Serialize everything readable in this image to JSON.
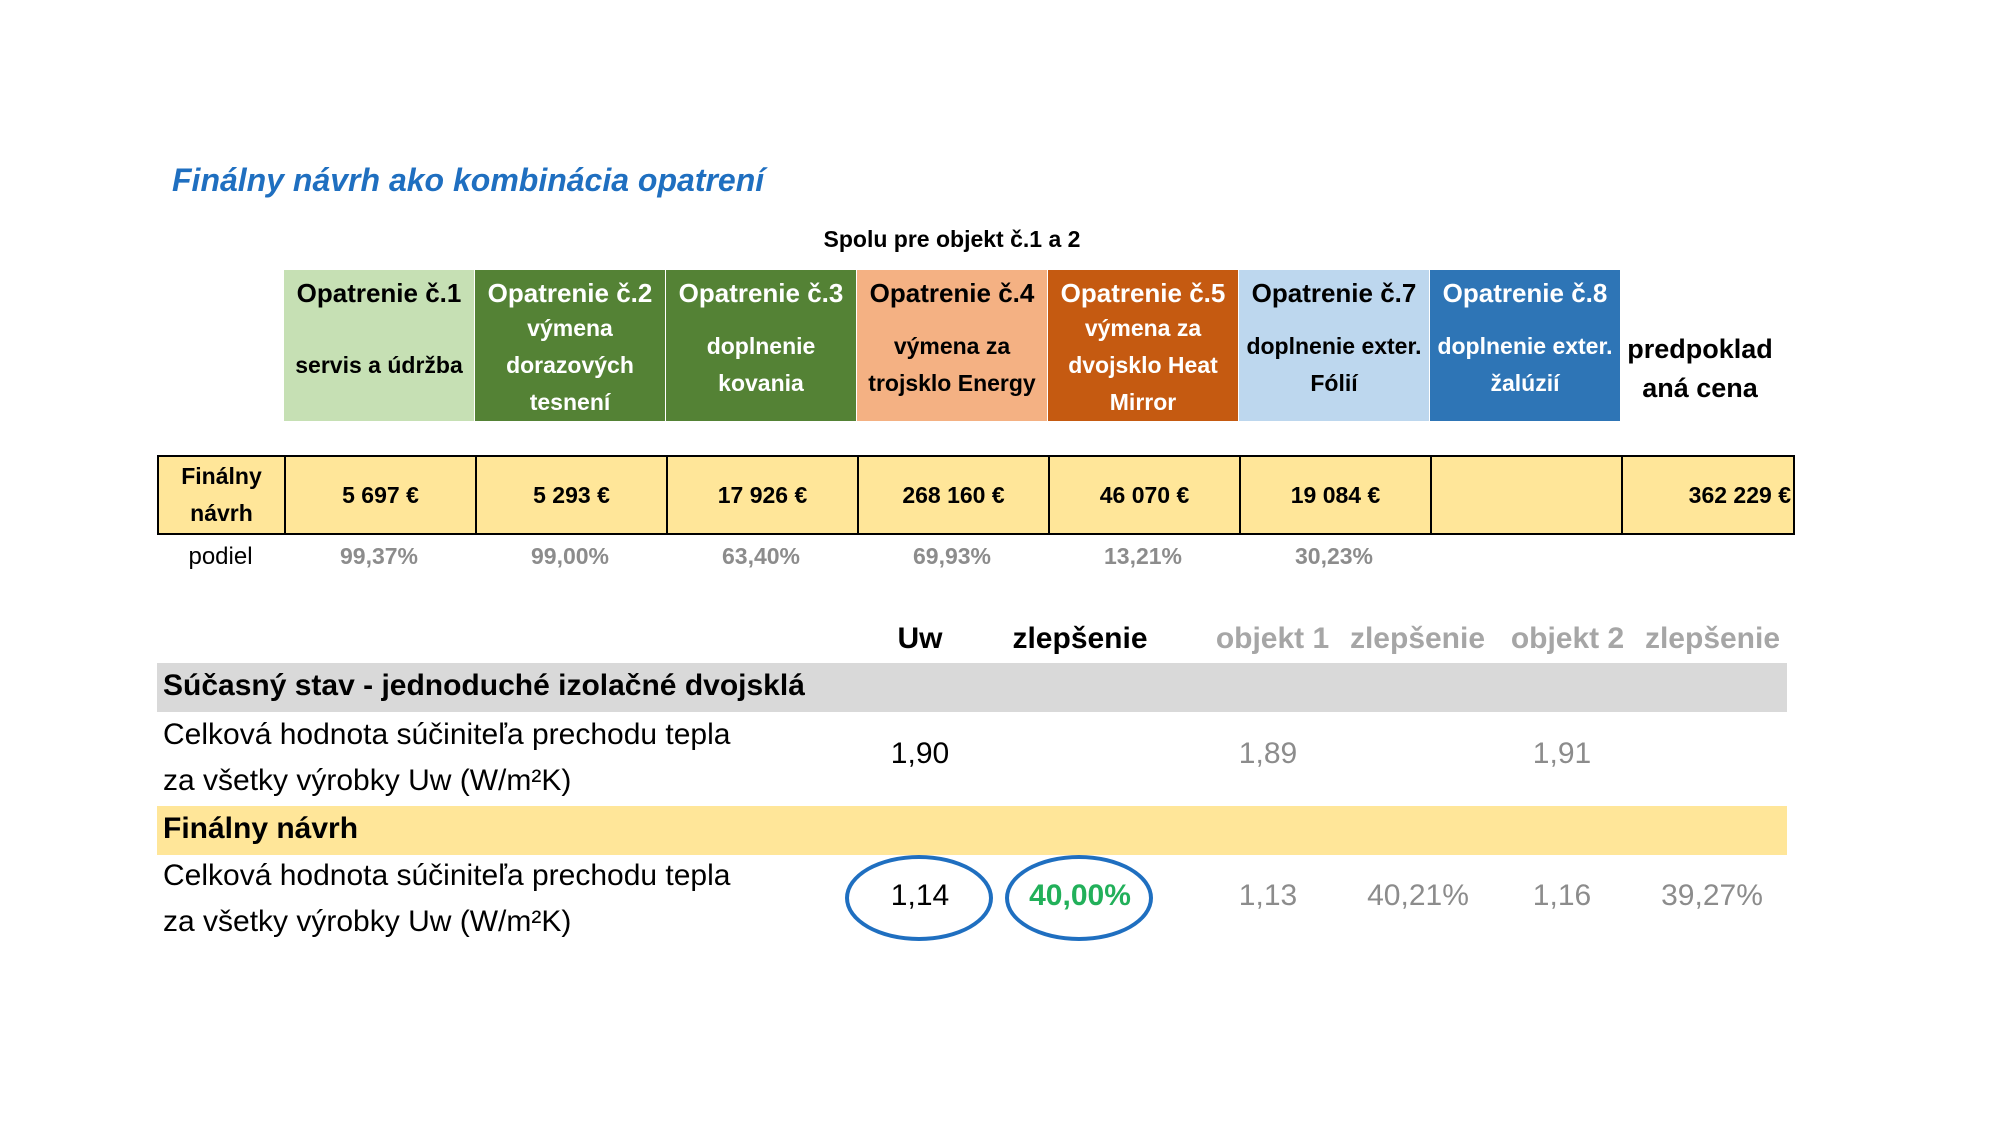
{
  "title": "Finálny návrh ako kombinácia opatrení",
  "subtitle": "Spolu pre objekt č.1 a 2",
  "measures": [
    {
      "name": "Opatrenie č.1",
      "desc": "servis a údržba",
      "color": "#c6e0b4",
      "text_color": "#000000"
    },
    {
      "name": "Opatrenie č.2",
      "desc": "výmena dorazových tesnení",
      "color": "#548235",
      "text_color": "#ffffff"
    },
    {
      "name": "Opatrenie č.3",
      "desc": "doplnenie kovania",
      "color": "#548235",
      "text_color": "#ffffff"
    },
    {
      "name": "Opatrenie č.4",
      "desc": "výmena za trojsklo Energy",
      "color": "#f4b183",
      "text_color": "#000000"
    },
    {
      "name": "Opatrenie č.5",
      "desc": "výmena za dvojsklo Heat Mirror",
      "color": "#c55a11",
      "text_color": "#ffffff"
    },
    {
      "name": "Opatrenie č.7",
      "desc": "doplnenie exter. Fólií",
      "color": "#bdd7ee",
      "text_color": "#000000"
    },
    {
      "name": "Opatrenie č.8",
      "desc": "doplnenie exter. žalúzií",
      "color": "#2e75b6",
      "text_color": "#ffffff"
    }
  ],
  "predicted_price_header": "predpokladaná cena",
  "final_row": {
    "label": "Finálny návrh",
    "values": [
      "5 697 €",
      "5 293 €",
      "17 926 €",
      "268 160 €",
      "46 070 €",
      "19 084 €",
      ""
    ],
    "total": "362 229 €",
    "background": "#ffe699"
  },
  "share_row": {
    "label": "podiel",
    "values": [
      "99,37%",
      "99,00%",
      "63,40%",
      "69,93%",
      "13,21%",
      "30,23%",
      ""
    ]
  },
  "comparison": {
    "headers": {
      "uw": "Uw",
      "improvement": "zlepšenie",
      "object1": "objekt 1",
      "improvement1": "zlepšenie",
      "object2": "objekt 2",
      "improvement2": "zlepšenie"
    },
    "current": {
      "section_label": "Súčasný stav - jednoduché izolačné dvojsklá",
      "section_color": "#d9d9d9",
      "row_label_line1": "Celková hodnota súčiniteľa prechodu tepla",
      "row_label_line2": "za všetky výrobky Uw (W/m²K)",
      "uw": "1,90",
      "object1": "1,89",
      "object2": "1,91"
    },
    "final": {
      "section_label": "Finálny návrh",
      "section_color": "#ffe699",
      "row_label_line1": "Celková hodnota súčiniteľa prechodu tepla",
      "row_label_line2": "za všetky výrobky Uw (W/m²K)",
      "uw": "1,14",
      "improvement": "40,00%",
      "object1": "1,13",
      "improvement1": "40,21%",
      "object2": "1,16",
      "improvement2": "39,27%"
    }
  }
}
